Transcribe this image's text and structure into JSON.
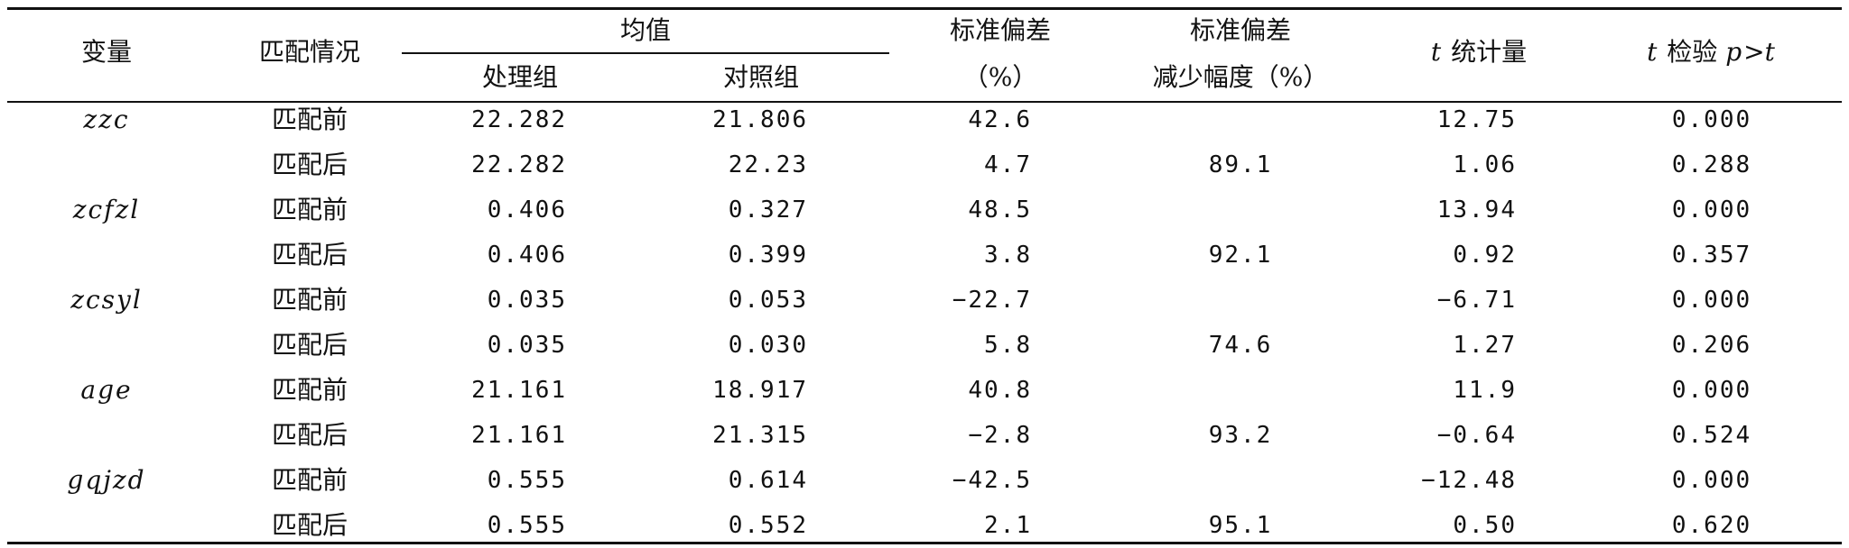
{
  "headers": {
    "variable": "变量",
    "matching": "匹配情况",
    "mean": "均值",
    "treatment": "处理组",
    "control": "对照组",
    "std_bias_line1": "标准偏差",
    "std_bias_line2": "（%）",
    "reduction_line1": "标准偏差",
    "reduction_line2": "减少幅度（%）",
    "t_stat_t": "t",
    "t_stat_label": "统计量",
    "t_test_t": "t",
    "t_test_label": "检验",
    "t_test_p": "p",
    "t_test_gt": ">",
    "t_test_t2": "t"
  },
  "rows": [
    {
      "variable": "zzc",
      "matching": "匹配前",
      "treatment": "22.282",
      "control": "21.806",
      "std_bias": "42.6",
      "reduction": "",
      "t_stat": "12.75",
      "p_value": "0.000"
    },
    {
      "variable": "",
      "matching": "匹配后",
      "treatment": "22.282",
      "control": "22.23",
      "std_bias": "4.7",
      "reduction": "89.1",
      "t_stat": "1.06",
      "p_value": "0.288"
    },
    {
      "variable": "zcfzl",
      "matching": "匹配前",
      "treatment": "0.406",
      "control": "0.327",
      "std_bias": "48.5",
      "reduction": "",
      "t_stat": "13.94",
      "p_value": "0.000"
    },
    {
      "variable": "",
      "matching": "匹配后",
      "treatment": "0.406",
      "control": "0.399",
      "std_bias": "3.8",
      "reduction": "92.1",
      "t_stat": "0.92",
      "p_value": "0.357"
    },
    {
      "variable": "zcsyl",
      "matching": "匹配前",
      "treatment": "0.035",
      "control": "0.053",
      "std_bias": "−22.7",
      "reduction": "",
      "t_stat": "−6.71",
      "p_value": "0.000"
    },
    {
      "variable": "",
      "matching": "匹配后",
      "treatment": "0.035",
      "control": "0.030",
      "std_bias": "5.8",
      "reduction": "74.6",
      "t_stat": "1.27",
      "p_value": "0.206"
    },
    {
      "variable": "age",
      "matching": "匹配前",
      "treatment": "21.161",
      "control": "18.917",
      "std_bias": "40.8",
      "reduction": "",
      "t_stat": "11.9",
      "p_value": "0.000"
    },
    {
      "variable": "",
      "matching": "匹配后",
      "treatment": "21.161",
      "control": "21.315",
      "std_bias": "−2.8",
      "reduction": "93.2",
      "t_stat": "−0.64",
      "p_value": "0.524"
    },
    {
      "variable": "gqjzd",
      "matching": "匹配前",
      "treatment": "0.555",
      "control": "0.614",
      "std_bias": "−42.5",
      "reduction": "",
      "t_stat": "−12.48",
      "p_value": "0.000"
    },
    {
      "variable": "",
      "matching": "匹配后",
      "treatment": "0.555",
      "control": "0.552",
      "std_bias": "2.1",
      "reduction": "95.1",
      "t_stat": "0.50",
      "p_value": "0.620"
    }
  ]
}
